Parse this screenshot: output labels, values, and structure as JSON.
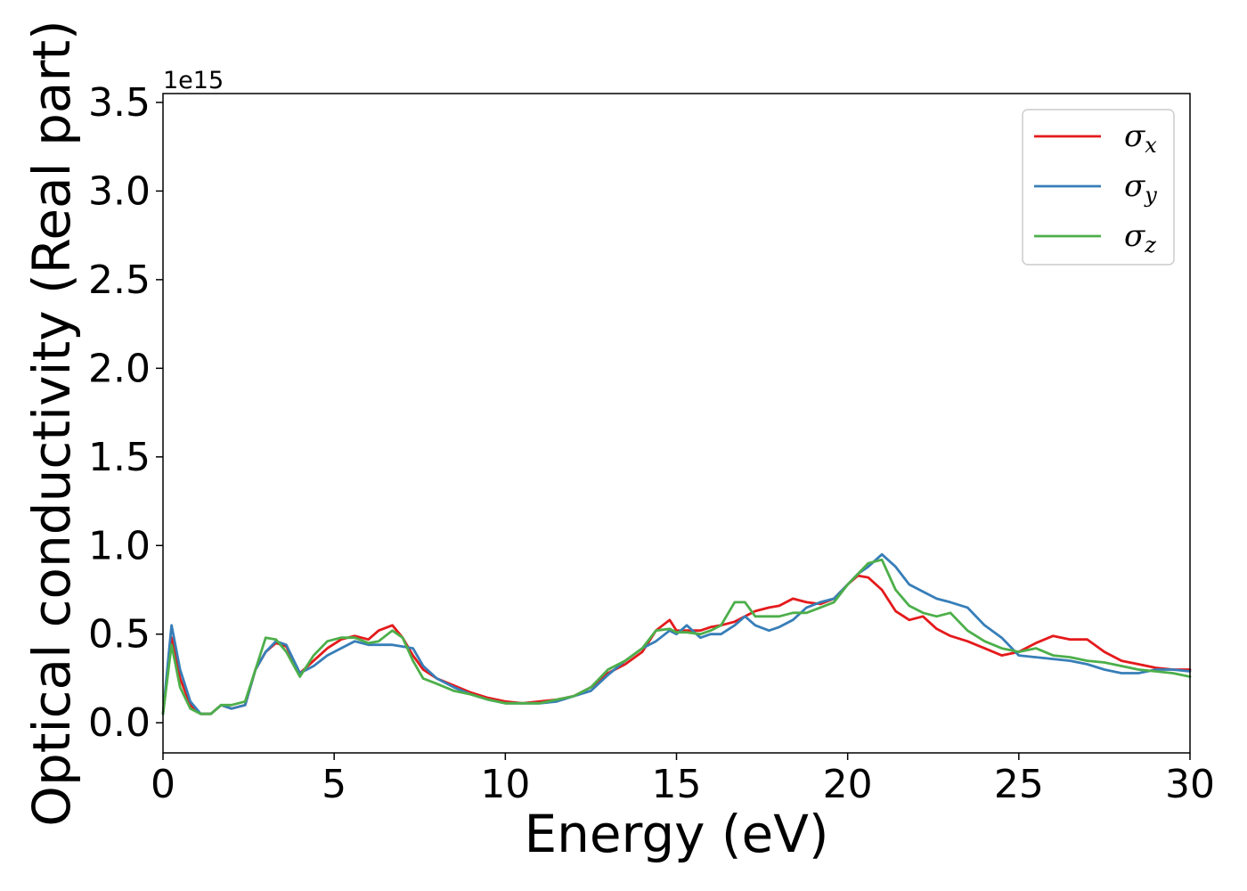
{
  "chart_data": {
    "type": "line",
    "title": "",
    "xlabel": "Energy (eV)",
    "ylabel": "Optical conductivity (Real part)",
    "y_offset_label": "1e15",
    "xlim": [
      0,
      30
    ],
    "ylim": [
      -0.17,
      3.55
    ],
    "xticks": [
      0,
      5,
      10,
      15,
      20,
      25,
      30
    ],
    "yticks": [
      0.0,
      0.5,
      1.0,
      1.5,
      2.0,
      2.5,
      3.0,
      3.5
    ],
    "xtick_labels": [
      "0",
      "5",
      "10",
      "15",
      "20",
      "25",
      "30"
    ],
    "ytick_labels": [
      "0.0",
      "0.5",
      "1.0",
      "1.5",
      "2.0",
      "2.5",
      "3.0",
      "3.5"
    ],
    "grid": false,
    "legend_position": "top-right",
    "series": [
      {
        "name": "σx",
        "base": "σ",
        "sub": "x",
        "color": "#e41a1c",
        "x": [
          0,
          0.25,
          0.5,
          0.8,
          1.1,
          1.4,
          1.7,
          2.0,
          2.4,
          2.7,
          3.0,
          3.3,
          3.6,
          4.0,
          4.4,
          4.8,
          5.2,
          5.6,
          6.0,
          6.3,
          6.7,
          7.0,
          7.3,
          7.6,
          8.0,
          8.5,
          9.0,
          9.5,
          10.0,
          10.5,
          11.0,
          11.5,
          12.0,
          12.5,
          13.0,
          13.5,
          14.0,
          14.4,
          14.8,
          15.0,
          15.3,
          15.7,
          16.0,
          16.3,
          16.7,
          17.0,
          17.3,
          17.7,
          18.0,
          18.4,
          18.8,
          19.2,
          19.6,
          20.0,
          20.3,
          20.6,
          21.0,
          21.4,
          21.8,
          22.2,
          22.6,
          23.0,
          23.5,
          24.0,
          24.5,
          25.0,
          25.5,
          26.0,
          26.5,
          27.0,
          27.5,
          28.0,
          28.5,
          29.0,
          29.5,
          30.0
        ],
        "y": [
          0.05,
          0.48,
          0.25,
          0.1,
          0.05,
          0.05,
          0.1,
          0.08,
          0.1,
          0.3,
          0.4,
          0.45,
          0.43,
          0.28,
          0.35,
          0.42,
          0.47,
          0.49,
          0.47,
          0.52,
          0.55,
          0.48,
          0.38,
          0.3,
          0.25,
          0.21,
          0.17,
          0.14,
          0.12,
          0.11,
          0.12,
          0.13,
          0.15,
          0.2,
          0.28,
          0.33,
          0.4,
          0.52,
          0.58,
          0.52,
          0.52,
          0.52,
          0.54,
          0.55,
          0.57,
          0.6,
          0.63,
          0.65,
          0.66,
          0.7,
          0.68,
          0.67,
          0.7,
          0.78,
          0.83,
          0.82,
          0.75,
          0.63,
          0.58,
          0.6,
          0.53,
          0.49,
          0.46,
          0.42,
          0.38,
          0.4,
          0.45,
          0.49,
          0.47,
          0.47,
          0.4,
          0.35,
          0.33,
          0.31,
          0.3,
          0.3
        ]
      },
      {
        "name": "σy",
        "base": "σ",
        "sub": "y",
        "color": "#377eb8",
        "x": [
          0,
          0.25,
          0.5,
          0.8,
          1.1,
          1.4,
          1.7,
          2.0,
          2.4,
          2.7,
          3.0,
          3.3,
          3.6,
          4.0,
          4.4,
          4.8,
          5.2,
          5.6,
          6.0,
          6.3,
          6.7,
          7.0,
          7.3,
          7.6,
          8.0,
          8.5,
          9.0,
          9.5,
          10.0,
          10.5,
          11.0,
          11.5,
          12.0,
          12.5,
          13.0,
          13.5,
          14.0,
          14.4,
          14.8,
          15.0,
          15.3,
          15.7,
          16.0,
          16.3,
          16.7,
          17.0,
          17.3,
          17.7,
          18.0,
          18.4,
          18.8,
          19.2,
          19.6,
          20.0,
          20.3,
          20.6,
          21.0,
          21.4,
          21.8,
          22.2,
          22.6,
          23.0,
          23.5,
          24.0,
          24.5,
          25.0,
          25.5,
          26.0,
          26.5,
          27.0,
          27.5,
          28.0,
          28.5,
          29.0,
          29.5,
          30.0
        ],
        "y": [
          0.05,
          0.55,
          0.3,
          0.12,
          0.05,
          0.05,
          0.1,
          0.08,
          0.1,
          0.3,
          0.4,
          0.46,
          0.44,
          0.28,
          0.32,
          0.38,
          0.42,
          0.46,
          0.44,
          0.44,
          0.44,
          0.43,
          0.42,
          0.32,
          0.25,
          0.2,
          0.16,
          0.13,
          0.11,
          0.11,
          0.11,
          0.12,
          0.15,
          0.18,
          0.27,
          0.35,
          0.42,
          0.46,
          0.52,
          0.5,
          0.55,
          0.48,
          0.5,
          0.5,
          0.55,
          0.6,
          0.55,
          0.52,
          0.54,
          0.58,
          0.65,
          0.68,
          0.7,
          0.78,
          0.84,
          0.88,
          0.95,
          0.88,
          0.78,
          0.74,
          0.7,
          0.68,
          0.65,
          0.55,
          0.48,
          0.38,
          0.37,
          0.36,
          0.35,
          0.33,
          0.3,
          0.28,
          0.28,
          0.3,
          0.3,
          0.29
        ]
      },
      {
        "name": "σz",
        "base": "σ",
        "sub": "z",
        "color": "#4daf4a",
        "x": [
          0,
          0.25,
          0.5,
          0.8,
          1.1,
          1.4,
          1.7,
          2.0,
          2.4,
          2.7,
          3.0,
          3.3,
          3.6,
          4.0,
          4.4,
          4.8,
          5.2,
          5.6,
          6.0,
          6.3,
          6.7,
          7.0,
          7.3,
          7.6,
          8.0,
          8.5,
          9.0,
          9.5,
          10.0,
          10.5,
          11.0,
          11.5,
          12.0,
          12.5,
          13.0,
          13.5,
          14.0,
          14.4,
          14.8,
          15.0,
          15.3,
          15.7,
          16.0,
          16.3,
          16.7,
          17.0,
          17.3,
          17.7,
          18.0,
          18.4,
          18.8,
          19.2,
          19.6,
          20.0,
          20.3,
          20.6,
          21.0,
          21.4,
          21.8,
          22.2,
          22.6,
          23.0,
          23.5,
          24.0,
          24.5,
          25.0,
          25.5,
          26.0,
          26.5,
          27.0,
          27.5,
          28.0,
          28.5,
          29.0,
          29.5,
          30.0
        ],
        "y": [
          0.05,
          0.44,
          0.2,
          0.08,
          0.05,
          0.05,
          0.1,
          0.1,
          0.12,
          0.3,
          0.48,
          0.47,
          0.4,
          0.26,
          0.38,
          0.46,
          0.48,
          0.48,
          0.45,
          0.46,
          0.52,
          0.48,
          0.35,
          0.25,
          0.22,
          0.18,
          0.16,
          0.13,
          0.11,
          0.11,
          0.11,
          0.13,
          0.15,
          0.2,
          0.3,
          0.35,
          0.42,
          0.52,
          0.53,
          0.51,
          0.51,
          0.5,
          0.52,
          0.55,
          0.68,
          0.68,
          0.6,
          0.6,
          0.6,
          0.62,
          0.62,
          0.65,
          0.68,
          0.78,
          0.84,
          0.9,
          0.92,
          0.75,
          0.66,
          0.62,
          0.6,
          0.62,
          0.52,
          0.46,
          0.42,
          0.4,
          0.42,
          0.38,
          0.37,
          0.35,
          0.34,
          0.32,
          0.3,
          0.29,
          0.28,
          0.26
        ]
      }
    ]
  }
}
